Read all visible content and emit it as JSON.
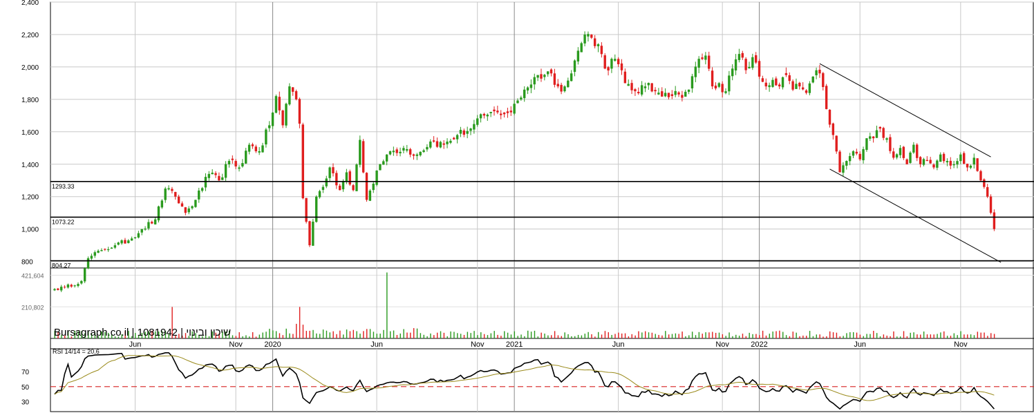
{
  "watermark": "Bursagraph.co.il | 1081942 | שיכון ובינוי",
  "chart_data": {
    "type": "candlestick",
    "price_axis": {
      "ylim": [
        760,
        2400
      ],
      "ticks": [
        800,
        1000,
        1200,
        1400,
        1600,
        1800,
        2000,
        2200,
        2400
      ],
      "tick_labels": [
        "800",
        "1,000",
        "1,200",
        "1,400",
        "1,600",
        "1,800",
        "2,000",
        "2,200",
        "2,400"
      ]
    },
    "volume_axis": {
      "ylim": [
        0,
        470000
      ],
      "tick_labels": [
        "421,604",
        "210,802"
      ],
      "ticks": [
        421604,
        210802
      ]
    },
    "rsi": {
      "label": "RSI 14/14 = 20.6",
      "ylim": [
        17,
        100
      ],
      "ticks": [
        30,
        50,
        70
      ],
      "tick_labels": [
        "30",
        "50",
        "70"
      ],
      "dashed_level": 50
    },
    "x_labels": [
      {
        "label": "Jun",
        "idx": 24,
        "major": false
      },
      {
        "label": "Nov",
        "idx": 54,
        "major": false
      },
      {
        "label": "2020",
        "idx": 65,
        "major": true
      },
      {
        "label": "Jun",
        "idx": 96,
        "major": false
      },
      {
        "label": "Nov",
        "idx": 126,
        "major": false
      },
      {
        "label": "2021",
        "idx": 137,
        "major": true
      },
      {
        "label": "Jun",
        "idx": 168,
        "major": false
      },
      {
        "label": "Nov",
        "idx": 199,
        "major": false
      },
      {
        "label": "2022",
        "idx": 210,
        "major": true
      },
      {
        "label": "Jun",
        "idx": 240,
        "major": false
      },
      {
        "label": "Nov",
        "idx": 270,
        "major": false
      }
    ],
    "levels": [
      {
        "value": 1293.33,
        "label": "1293.33"
      },
      {
        "value": 1073.22,
        "label": "1073.22"
      },
      {
        "value": 804.27,
        "label": "804.27"
      }
    ],
    "trendlines": [
      {
        "from": [
          228,
          2020
        ],
        "to": [
          279,
          1445
        ]
      },
      {
        "from": [
          231,
          1370
        ],
        "to": [
          282,
          795
        ]
      }
    ],
    "anchors": [
      [
        0,
        630
      ],
      [
        3,
        640
      ],
      [
        8,
        680
      ],
      [
        10,
        820
      ],
      [
        14,
        870
      ],
      [
        18,
        900
      ],
      [
        22,
        930
      ],
      [
        26,
        1000
      ],
      [
        30,
        1060
      ],
      [
        33,
        1250
      ],
      [
        36,
        1200
      ],
      [
        39,
        1100
      ],
      [
        42,
        1180
      ],
      [
        46,
        1340
      ],
      [
        49,
        1300
      ],
      [
        52,
        1420
      ],
      [
        55,
        1380
      ],
      [
        58,
        1520
      ],
      [
        61,
        1480
      ],
      [
        64,
        1640
      ],
      [
        66,
        1820
      ],
      [
        68,
        1640
      ],
      [
        70,
        1880
      ],
      [
        72,
        1800
      ],
      [
        73,
        1650
      ],
      [
        74,
        1190
      ],
      [
        76,
        900
      ],
      [
        78,
        1200
      ],
      [
        80,
        1260
      ],
      [
        82,
        1380
      ],
      [
        85,
        1240
      ],
      [
        87,
        1350
      ],
      [
        89,
        1240
      ],
      [
        91,
        1550
      ],
      [
        93,
        1180
      ],
      [
        95,
        1280
      ],
      [
        97,
        1400
      ],
      [
        100,
        1480
      ],
      [
        104,
        1500
      ],
      [
        108,
        1460
      ],
      [
        112,
        1540
      ],
      [
        116,
        1520
      ],
      [
        120,
        1580
      ],
      [
        124,
        1620
      ],
      [
        128,
        1700
      ],
      [
        132,
        1720
      ],
      [
        136,
        1720
      ],
      [
        140,
        1860
      ],
      [
        144,
        1950
      ],
      [
        148,
        1960
      ],
      [
        150,
        1880
      ],
      [
        152,
        1880
      ],
      [
        154,
        1960
      ],
      [
        156,
        2100
      ],
      [
        158,
        2200
      ],
      [
        160,
        2180
      ],
      [
        162,
        2140
      ],
      [
        164,
        1990
      ],
      [
        167,
        2050
      ],
      [
        170,
        1900
      ],
      [
        173,
        1850
      ],
      [
        176,
        1880
      ],
      [
        179,
        1850
      ],
      [
        182,
        1840
      ],
      [
        186,
        1830
      ],
      [
        189,
        1860
      ],
      [
        192,
        2050
      ],
      [
        194,
        2070
      ],
      [
        196,
        1880
      ],
      [
        198,
        1900
      ],
      [
        200,
        1850
      ],
      [
        202,
        1990
      ],
      [
        204,
        2080
      ],
      [
        206,
        1980
      ],
      [
        208,
        2060
      ],
      [
        210,
        1940
      ],
      [
        212,
        1880
      ],
      [
        214,
        1920
      ],
      [
        216,
        1880
      ],
      [
        218,
        1950
      ],
      [
        220,
        1860
      ],
      [
        222,
        1880
      ],
      [
        224,
        1840
      ],
      [
        226,
        1940
      ],
      [
        228,
        1960
      ],
      [
        230,
        1740
      ],
      [
        232,
        1580
      ],
      [
        234,
        1350
      ],
      [
        236,
        1420
      ],
      [
        238,
        1480
      ],
      [
        240,
        1430
      ],
      [
        242,
        1560
      ],
      [
        244,
        1560
      ],
      [
        246,
        1620
      ],
      [
        248,
        1560
      ],
      [
        250,
        1440
      ],
      [
        252,
        1500
      ],
      [
        254,
        1400
      ],
      [
        256,
        1520
      ],
      [
        258,
        1400
      ],
      [
        260,
        1420
      ],
      [
        262,
        1380
      ],
      [
        264,
        1460
      ],
      [
        266,
        1420
      ],
      [
        268,
        1400
      ],
      [
        270,
        1460
      ],
      [
        272,
        1380
      ],
      [
        274,
        1440
      ],
      [
        276,
        1300
      ],
      [
        278,
        1200
      ],
      [
        279,
        1100
      ],
      [
        280,
        1000
      ]
    ],
    "n_periods": 281,
    "legend": "none",
    "grid": true
  }
}
